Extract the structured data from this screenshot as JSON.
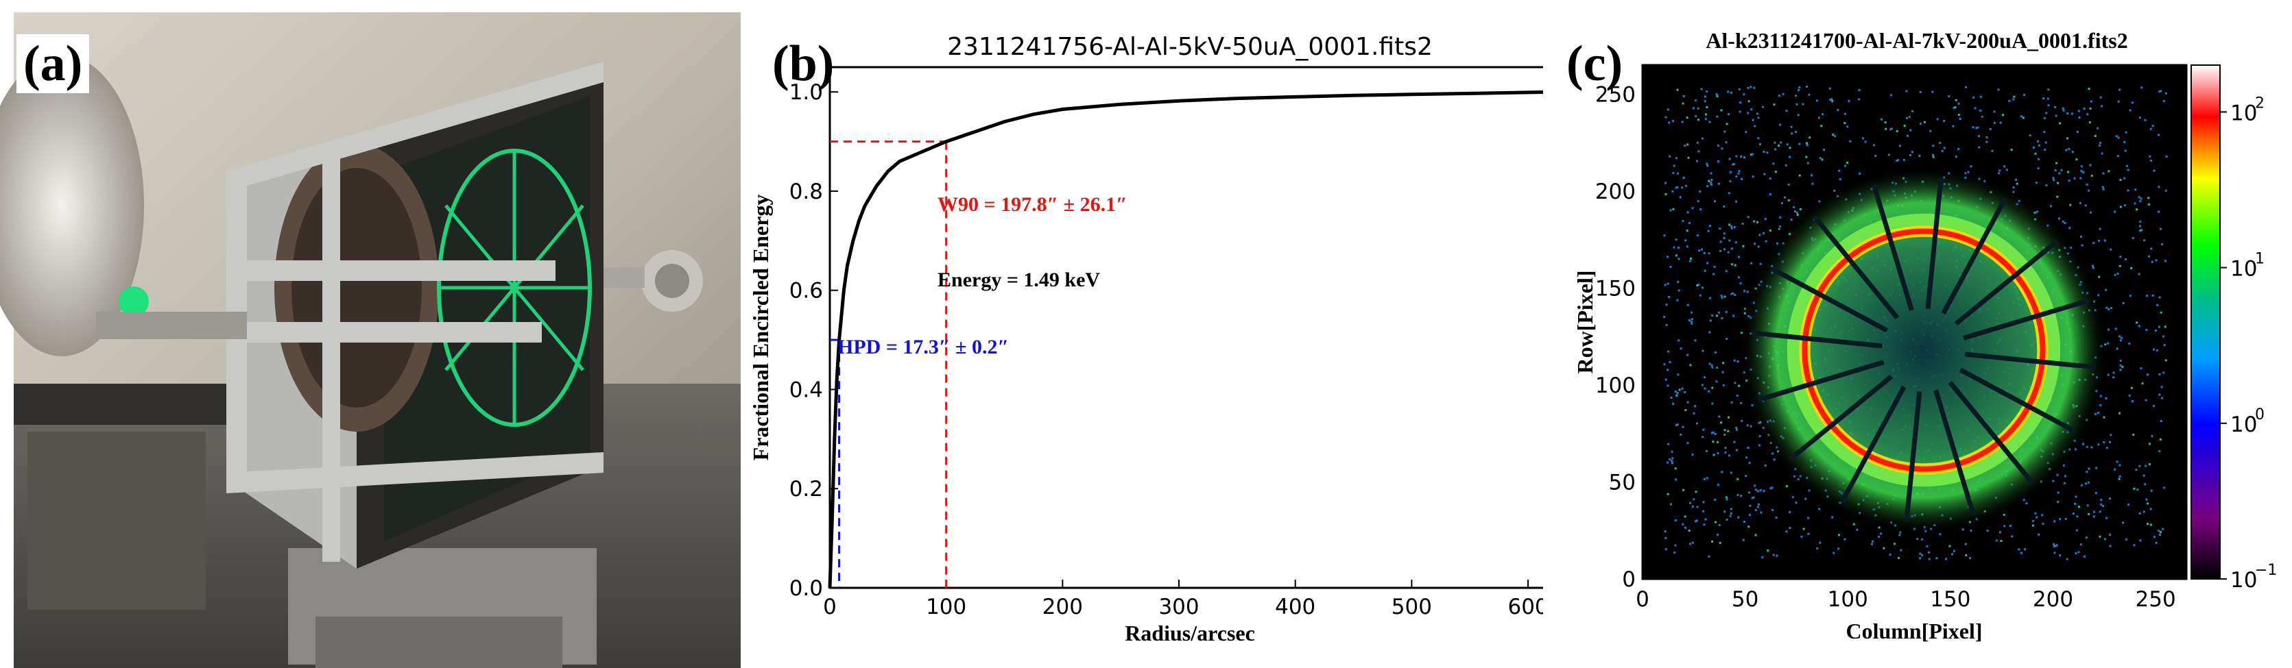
{
  "figure": {
    "panel_a": {
      "label": "(a)",
      "photo_description": "photo"
    },
    "panel_b": {
      "label": "(b)"
    },
    "panel_c": {
      "label": "(c)"
    }
  },
  "chart_data": [
    {
      "type": "line",
      "title": "2311241756-Al-Al-5kV-50uA_0001.fits2",
      "xlabel": "Radius/arcsec",
      "ylabel": "Fractional Encircled Energy",
      "xlim": [
        0,
        620
      ],
      "ylim": [
        0,
        1.05
      ],
      "xticks": [
        "0",
        "100",
        "200",
        "300",
        "400",
        "500",
        "600"
      ],
      "yticks": [
        "0.0",
        "0.2",
        "0.4",
        "0.6",
        "0.8",
        "1.0"
      ],
      "series": [
        {
          "x": [
            0,
            2,
            4,
            6,
            8,
            10,
            12,
            15,
            20,
            25,
            30,
            40,
            50,
            60,
            80,
            100,
            125,
            150,
            175,
            200,
            250,
            300,
            350,
            400,
            450,
            500,
            550,
            600,
            620
          ],
          "y": [
            0,
            0.14,
            0.3,
            0.42,
            0.5,
            0.55,
            0.6,
            0.65,
            0.7,
            0.74,
            0.77,
            0.81,
            0.84,
            0.86,
            0.88,
            0.9,
            0.92,
            0.94,
            0.955,
            0.965,
            0.975,
            0.982,
            0.987,
            0.99,
            0.993,
            0.995,
            0.997,
            0.999,
            1.0
          ],
          "color": "#000000"
        }
      ],
      "markers": {
        "w90": {
          "x": 197.8,
          "y": 0.9,
          "color": "#e8140f"
        },
        "hpd": {
          "x": 17.3,
          "y": 0.5,
          "color": "#1010e0"
        }
      },
      "annotations": {
        "w90_text": "W90 = 197.8″ ±  26.1″",
        "energy_text": "Energy = 1.49 keV",
        "hpd_text": "HPD = 17.3″ ±  0.2″"
      }
    },
    {
      "type": "heatmap",
      "title": "Al-k2311241700-Al-Al-7kV-200uA_0001.fits2",
      "xlabel": "Column[Pixel]",
      "ylabel": "Row[Pixel]",
      "xlim": [
        0,
        265
      ],
      "ylim": [
        0,
        265
      ],
      "xticks": [
        "0",
        "50",
        "100",
        "150",
        "200",
        "250"
      ],
      "yticks": [
        "0",
        "50",
        "100",
        "150",
        "200",
        "250"
      ],
      "colorbar": {
        "scale": "log",
        "range": [
          0.1,
          200
        ],
        "ticks": [
          "10",
          "10",
          "10",
          "10"
        ],
        "tick_exponents": [
          "2",
          "1",
          "0",
          "−1"
        ],
        "colors": [
          "#000000",
          "#7a0080",
          "#0000ff",
          "#00a0ff",
          "#00c080",
          "#00ff00",
          "#ffff00",
          "#ff0000",
          "#ffffff"
        ]
      },
      "ring": {
        "center_col": 137,
        "center_row": 118,
        "radius": 58
      }
    }
  ]
}
